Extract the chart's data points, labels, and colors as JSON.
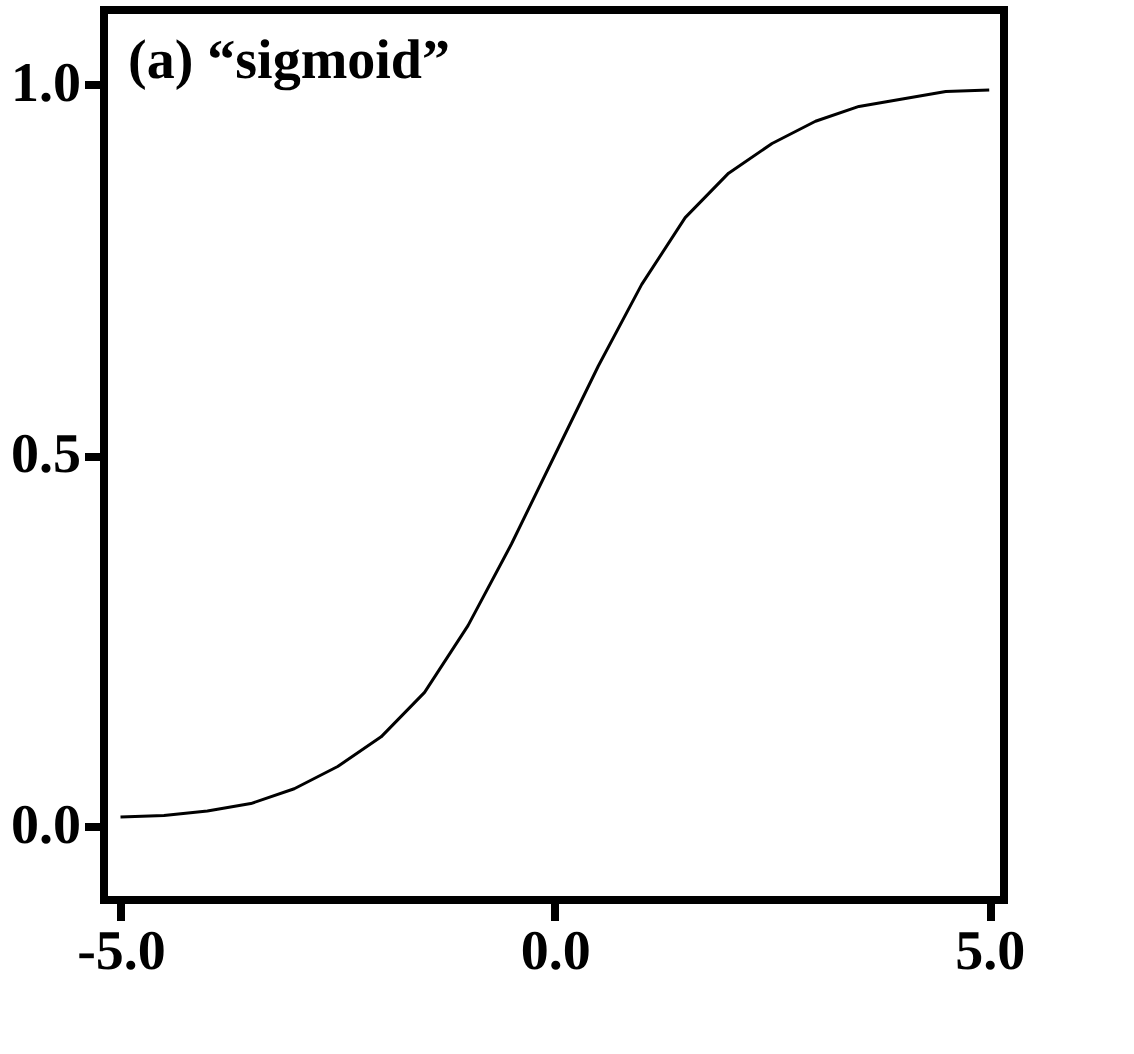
{
  "chart_data": {
    "type": "line",
    "annotations": [
      "(a) “sigmoid”"
    ],
    "x": [
      -5,
      -4.5,
      -4,
      -3.5,
      -3,
      -2.5,
      -2,
      -1.5,
      -1,
      -0.5,
      0,
      0.5,
      1,
      1.5,
      2,
      2.5,
      3,
      3.5,
      4,
      4.5,
      5
    ],
    "series": [
      {
        "color": "#000000",
        "values": [
          0.012,
          0.014,
          0.02,
          0.03,
          0.05,
          0.08,
          0.12,
          0.18,
          0.27,
          0.38,
          0.5,
          0.62,
          0.73,
          0.82,
          0.88,
          0.92,
          0.95,
          0.97,
          0.98,
          0.99,
          0.992
        ]
      }
    ],
    "xlim": [
      -5.19,
      5.17
    ],
    "ylim": [
      -0.1,
      1.1
    ],
    "xticks": [
      {
        "value": -5,
        "label": "-5.0"
      },
      {
        "value": 0,
        "label": "0.0"
      },
      {
        "value": 5,
        "label": "5.0"
      }
    ],
    "yticks": [
      {
        "value": 0,
        "label": "0.0"
      },
      {
        "value": 0.5,
        "label": "0.5"
      },
      {
        "value": 1,
        "label": "1.0"
      }
    ],
    "grid": false,
    "marker": "none",
    "line_style": "solid"
  }
}
